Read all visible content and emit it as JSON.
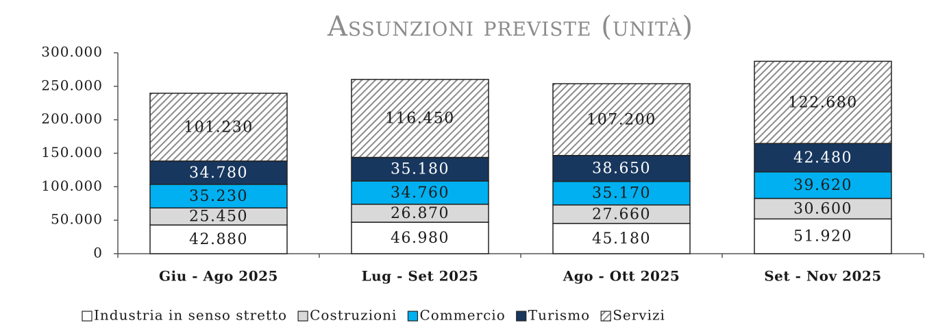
{
  "chart_data": {
    "type": "stacked_bar",
    "title": "Assunzioni previste (unità)",
    "categories": [
      "Giu - Ago 2025",
      "Lug - Set 2025",
      "Ago - Ott 2025",
      "Set - Nov 2025"
    ],
    "series": [
      {
        "name": "Industria in senso stretto",
        "color": "#ffffff",
        "label_color": "#1a1a1a",
        "values": [
          42880,
          46980,
          45180,
          51920
        ],
        "value_labels": [
          "42.880",
          "46.980",
          "45.180",
          "51.920"
        ]
      },
      {
        "name": "Costruzioni",
        "color": "#d9d9d9",
        "label_color": "#1a1a1a",
        "values": [
          25450,
          26870,
          27660,
          30600
        ],
        "value_labels": [
          "25.450",
          "26.870",
          "27.660",
          "30.600"
        ]
      },
      {
        "name": "Commercio",
        "color": "#00b0f0",
        "label_color": "#1a1a1a",
        "values": [
          35230,
          34760,
          35170,
          39620
        ],
        "value_labels": [
          "35.230",
          "34.760",
          "35.170",
          "39.620"
        ]
      },
      {
        "name": "Turismo",
        "color": "#17375e",
        "label_color": "#ffffff",
        "values": [
          34780,
          35180,
          38650,
          42480
        ],
        "value_labels": [
          "34.780",
          "35.180",
          "38.650",
          "42.480"
        ]
      },
      {
        "name": "Servizi",
        "color": "#a6a6a6",
        "hatch": true,
        "label_color": "#1a1a1a",
        "values": [
          101230,
          116450,
          107200,
          122680
        ],
        "value_labels": [
          "101.230",
          "116.450",
          "107.200",
          "122.680"
        ]
      }
    ],
    "ylim": [
      0,
      300000
    ],
    "yticks": [
      0,
      {
        "value": 50000,
        "label": "50.000"
      },
      {
        "value": 100000,
        "label": "100.000"
      },
      {
        "value": 150000,
        "label": "150.000"
      },
      {
        "value": 200000,
        "label": "200.000"
      },
      {
        "value": 250000,
        "label": "250.000"
      },
      {
        "value": 300000,
        "label": "300.000"
      }
    ],
    "legend": "bottom"
  }
}
